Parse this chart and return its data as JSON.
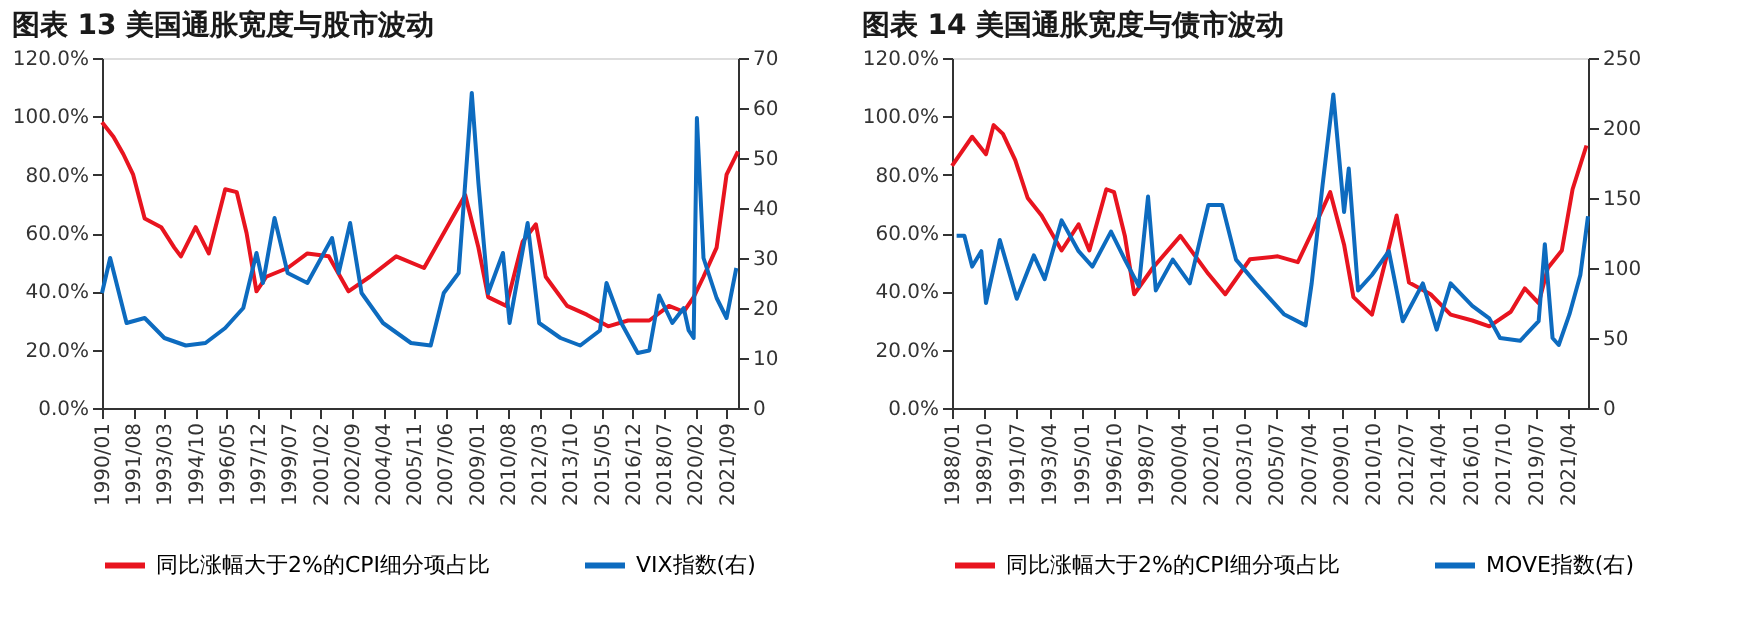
{
  "chart_data": [
    {
      "type": "line",
      "title": "图表 13   美国通胀宽度与股市波动",
      "legend": "bottom",
      "grid": false,
      "xlim": [
        "1990-01",
        "2022-04"
      ],
      "xticks": [
        {
          "value": "1990-01",
          "label": "1990/01"
        },
        {
          "value": "1991-08",
          "label": "1991/08"
        },
        {
          "value": "1993-03",
          "label": "1993/03"
        },
        {
          "value": "1994-10",
          "label": "1994/10"
        },
        {
          "value": "1996-05",
          "label": "1996/05"
        },
        {
          "value": "1997-12",
          "label": "1997/12"
        },
        {
          "value": "1999-07",
          "label": "1999/07"
        },
        {
          "value": "2001-02",
          "label": "2001/02"
        },
        {
          "value": "2002-09",
          "label": "2002/09"
        },
        {
          "value": "2004-04",
          "label": "2004/04"
        },
        {
          "value": "2005-11",
          "label": "2005/11"
        },
        {
          "value": "2007-06",
          "label": "2007/06"
        },
        {
          "value": "2009-01",
          "label": "2009/01"
        },
        {
          "value": "2010-08",
          "label": "2010/08"
        },
        {
          "value": "2012-03",
          "label": "2012/03"
        },
        {
          "value": "2013-10",
          "label": "2013/10"
        },
        {
          "value": "2015-05",
          "label": "2015/05"
        },
        {
          "value": "2016-12",
          "label": "2016/12"
        },
        {
          "value": "2018-07",
          "label": "2018/07"
        },
        {
          "value": "2020-02",
          "label": "2020/02"
        },
        {
          "value": "2021-09",
          "label": "2021/09"
        }
      ],
      "ylim": [
        0,
        120
      ],
      "yticks": [
        {
          "value": 0,
          "label": "0.0%"
        },
        {
          "value": 20,
          "label": "20.0%"
        },
        {
          "value": 40,
          "label": "40.0%"
        },
        {
          "value": 60,
          "label": "60.0%"
        },
        {
          "value": 80,
          "label": "80.0%"
        },
        {
          "value": 100,
          "label": "100.0%"
        },
        {
          "value": 120,
          "label": "120.0%"
        }
      ],
      "y2lim": [
        0,
        70
      ],
      "y2ticks": [
        0,
        10,
        20,
        30,
        40,
        50,
        60,
        70
      ],
      "series": [
        {
          "name": "同比涨幅大于2%的CPI细分项占比",
          "color": "#e8141f",
          "x": [
            "1990-01",
            "1990-08",
            "1991-02",
            "1991-08",
            "1992-03",
            "1993-01",
            "1993-09",
            "1994-01",
            "1994-10",
            "1995-06",
            "1996-04",
            "1996-11",
            "1997-05",
            "1997-11",
            "1998-05",
            "1999-06",
            "2000-06",
            "2001-07",
            "2002-07",
            "2003-08",
            "2004-12",
            "2006-05",
            "2007-05",
            "2008-06",
            "2009-02",
            "2009-08",
            "2010-07",
            "2011-05",
            "2012-01",
            "2012-07",
            "2013-08",
            "2014-08",
            "2015-09",
            "2016-09",
            "2017-10",
            "2018-10",
            "2019-07",
            "2020-01",
            "2020-07",
            "2021-03",
            "2021-09",
            "2022-04"
          ],
          "values": [
            98,
            93,
            87,
            80,
            65,
            62,
            55,
            52,
            62,
            53,
            75,
            74,
            60,
            40,
            45,
            48,
            53,
            52,
            40,
            45,
            52,
            48,
            60,
            73,
            55,
            38,
            35,
            57,
            63,
            45,
            35,
            32,
            28,
            30,
            30,
            35,
            33,
            38,
            45,
            55,
            80,
            88
          ]
        },
        {
          "name": "VIX指数(右)",
          "color": "#0d6bbf",
          "axis": "y2",
          "x": [
            "1990-01",
            "1990-06",
            "1991-04",
            "1992-03",
            "1993-03",
            "1994-04",
            "1995-04",
            "1996-04",
            "1997-03",
            "1997-11",
            "1998-03",
            "1998-10",
            "1999-06",
            "2000-06",
            "2001-09",
            "2002-01",
            "2002-08",
            "2003-03",
            "2004-04",
            "2005-09",
            "2006-09",
            "2007-05",
            "2008-02",
            "2008-10",
            "2009-02",
            "2009-08",
            "2010-05",
            "2010-09",
            "2011-08",
            "2012-03",
            "2013-04",
            "2014-04",
            "2015-04",
            "2015-08",
            "2016-05",
            "2017-03",
            "2017-10",
            "2018-04",
            "2018-12",
            "2019-07",
            "2019-10",
            "2020-01",
            "2020-03",
            "2020-07",
            "2021-03",
            "2021-09",
            "2022-03"
          ],
          "values": [
            23,
            30,
            17,
            18,
            14,
            12.5,
            13,
            16,
            20,
            31,
            25,
            38,
            27,
            25,
            34,
            27,
            37,
            23,
            17,
            13,
            12.5,
            23,
            27,
            63,
            45,
            23,
            31,
            17,
            37,
            17,
            14,
            12.5,
            15.5,
            25,
            17,
            11,
            11.5,
            22.5,
            17,
            20,
            15.5,
            14,
            58,
            30,
            22,
            18,
            28
          ]
        }
      ]
    },
    {
      "type": "line",
      "title": "图表 14   美国通胀宽度与债市波动",
      "legend": "bottom",
      "grid": false,
      "xlim": [
        "1988-01",
        "2022-05"
      ],
      "xticks": [
        {
          "value": "1988-01",
          "label": "1988/01"
        },
        {
          "value": "1989-10",
          "label": "1989/10"
        },
        {
          "value": "1991-07",
          "label": "1991/07"
        },
        {
          "value": "1993-04",
          "label": "1993/04"
        },
        {
          "value": "1995-01",
          "label": "1995/01"
        },
        {
          "value": "1996-10",
          "label": "1996/10"
        },
        {
          "value": "1998-07",
          "label": "1998/07"
        },
        {
          "value": "2000-04",
          "label": "2000/04"
        },
        {
          "value": "2002-01",
          "label": "2002/01"
        },
        {
          "value": "2003-10",
          "label": "2003/10"
        },
        {
          "value": "2005-07",
          "label": "2005/07"
        },
        {
          "value": "2007-04",
          "label": "2007/04"
        },
        {
          "value": "2009-01",
          "label": "2009/01"
        },
        {
          "value": "2010-10",
          "label": "2010/10"
        },
        {
          "value": "2012-07",
          "label": "2012/07"
        },
        {
          "value": "2014-04",
          "label": "2014/04"
        },
        {
          "value": "2016-01",
          "label": "2016/01"
        },
        {
          "value": "2017-10",
          "label": "2017/10"
        },
        {
          "value": "2019-07",
          "label": "2019/07"
        },
        {
          "value": "2021-04",
          "label": "2021/04"
        }
      ],
      "ylim": [
        0,
        120
      ],
      "yticks": [
        {
          "value": 0,
          "label": "0.0%"
        },
        {
          "value": 20,
          "label": "20.0%"
        },
        {
          "value": 40,
          "label": "40.0%"
        },
        {
          "value": 60,
          "label": "60.0%"
        },
        {
          "value": 80,
          "label": "80.0%"
        },
        {
          "value": 100,
          "label": "100.0%"
        },
        {
          "value": 120,
          "label": "120.0%"
        }
      ],
      "y2lim": [
        0,
        250
      ],
      "y2ticks": [
        0,
        50,
        100,
        150,
        200,
        250
      ],
      "series": [
        {
          "name": "同比涨幅大于2%的CPI细分项占比",
          "color": "#e8141f",
          "x": [
            "1988-01",
            "1989-02",
            "1989-11",
            "1990-04",
            "1990-10",
            "1991-06",
            "1992-02",
            "1992-11",
            "1993-12",
            "1994-11",
            "1995-06",
            "1996-05",
            "1996-10",
            "1997-05",
            "1997-11",
            "1998-11",
            "2000-05",
            "2001-11",
            "2002-10",
            "2004-02",
            "2005-08",
            "2006-09",
            "2007-06",
            "2008-06",
            "2009-03",
            "2009-09",
            "2010-09",
            "2011-08",
            "2012-01",
            "2012-09",
            "2013-11",
            "2014-12",
            "2016-02",
            "2017-01",
            "2018-03",
            "2018-12",
            "2019-09",
            "2020-03",
            "2020-12",
            "2021-07",
            "2022-04"
          ],
          "values": [
            83,
            93,
            87,
            97,
            94,
            85,
            72,
            66,
            54,
            63,
            54,
            75,
            74,
            59,
            39,
            48,
            59,
            46,
            39,
            51,
            52,
            50,
            60,
            74,
            56,
            38,
            32,
            55,
            66,
            43,
            39,
            32,
            30,
            28,
            33,
            41,
            36,
            48,
            54,
            75,
            90
          ]
        },
        {
          "name": "MOVE指数(右)",
          "color": "#0d6bbf",
          "axis": "y2",
          "x": [
            "1988-04",
            "1988-09",
            "1989-02",
            "1989-08",
            "1989-11",
            "1990-08",
            "1991-07",
            "1992-06",
            "1993-01",
            "1993-12",
            "1994-11",
            "1995-08",
            "1996-08",
            "1997-05",
            "1998-02",
            "1998-08",
            "1999-01",
            "1999-12",
            "2000-11",
            "2001-11",
            "2002-08",
            "2003-05",
            "2004-06",
            "2005-12",
            "2007-02",
            "2007-06",
            "2008-01",
            "2008-08",
            "2009-03",
            "2009-06",
            "2009-12",
            "2010-09",
            "2011-08",
            "2012-05",
            "2013-06",
            "2014-03",
            "2014-12",
            "2016-02",
            "2017-01",
            "2017-08",
            "2018-09",
            "2019-09",
            "2020-01",
            "2020-06",
            "2020-10",
            "2021-05",
            "2021-12",
            "2022-05"
          ],
          "values": [
            123,
            123,
            101,
            112,
            75,
            120,
            78,
            109,
            92,
            134,
            112,
            101,
            126,
            106,
            87,
            151,
            84,
            106,
            89,
            145,
            145,
            106,
            89,
            67,
            59,
            89,
            159,
            224,
            140,
            171,
            84,
            95,
            112,
            62,
            89,
            56,
            89,
            73,
            64,
            50,
            48,
            62,
            117,
            50,
            45,
            67,
            95,
            137
          ]
        }
      ]
    }
  ]
}
